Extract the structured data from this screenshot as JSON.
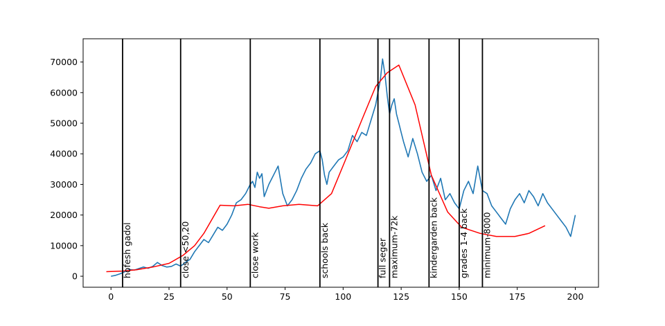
{
  "chart_data": {
    "type": "line",
    "title": "",
    "xlabel": "",
    "ylabel": "",
    "xlim": [
      -12,
      210
    ],
    "ylim": [
      -3600,
      77600
    ],
    "x_ticks": [
      0,
      25,
      50,
      75,
      100,
      125,
      150,
      175,
      200
    ],
    "y_ticks": [
      0,
      10000,
      20000,
      30000,
      40000,
      50000,
      60000,
      70000
    ],
    "x_tick_labels": [
      "0",
      "25",
      "50",
      "75",
      "100",
      "125",
      "150",
      "175",
      "200"
    ],
    "y_tick_labels": [
      "0",
      "10000",
      "20000",
      "30000",
      "40000",
      "50000",
      "60000",
      "70000"
    ],
    "grid": false,
    "legend": "none",
    "series": [
      {
        "color": "#1f77b4",
        "x": [
          0,
          2,
          4,
          6,
          8,
          10,
          12,
          14,
          16,
          18,
          20,
          22,
          24,
          26,
          28,
          30,
          32,
          34,
          36,
          38,
          40,
          42,
          44,
          46,
          48,
          50,
          52,
          54,
          56,
          58,
          60,
          61,
          62,
          63,
          64,
          65,
          66,
          68,
          70,
          72,
          74,
          76,
          78,
          80,
          82,
          84,
          86,
          88,
          90,
          91,
          92,
          93,
          94,
          96,
          98,
          100,
          102,
          104,
          106,
          108,
          110,
          112,
          114,
          115,
          116,
          117,
          118,
          119,
          120,
          121,
          122,
          123,
          124,
          125,
          126,
          128,
          130,
          132,
          134,
          136,
          138,
          140,
          142,
          144,
          146,
          148,
          150,
          152,
          154,
          156,
          158,
          160,
          162,
          164,
          166,
          168,
          170,
          172,
          174,
          176,
          178,
          180,
          182,
          184,
          186,
          188,
          190,
          192,
          194,
          196,
          198,
          200
        ],
        "y": [
          0,
          300,
          800,
          1500,
          2200,
          2000,
          2500,
          3000,
          2600,
          3200,
          4500,
          3500,
          3000,
          3200,
          4000,
          3300,
          4500,
          5500,
          8000,
          10000,
          12000,
          11000,
          13500,
          16000,
          15000,
          17000,
          20000,
          24000,
          25000,
          27000,
          30000,
          31000,
          29000,
          34000,
          32000,
          33500,
          26000,
          30000,
          33000,
          36000,
          27000,
          23000,
          25000,
          28000,
          32000,
          35000,
          37000,
          40000,
          41000,
          38000,
          33000,
          30000,
          34000,
          36000,
          38000,
          39000,
          41000,
          46000,
          44000,
          47000,
          46000,
          51000,
          56000,
          60000,
          64000,
          71000,
          66000,
          59000,
          53000,
          56000,
          58000,
          53000,
          50000,
          47000,
          44000,
          39000,
          45000,
          40000,
          34000,
          31000,
          33000,
          28000,
          32000,
          25000,
          27000,
          24000,
          22000,
          28000,
          31000,
          27000,
          36000,
          28000,
          27000,
          23000,
          21000,
          19000,
          17000,
          22000,
          25000,
          27000,
          24000,
          28000,
          26000,
          23000,
          27000,
          24000,
          22000,
          20000,
          18000,
          16000,
          13000,
          20000
        ]
      },
      {
        "color": "#ff0000",
        "x": [
          -2,
          5,
          11,
          18,
          25,
          31,
          36,
          40,
          47,
          53,
          59,
          64,
          68,
          74,
          81,
          89,
          95,
          101,
          108,
          114,
          119,
          124,
          131,
          138,
          145,
          151,
          159,
          166,
          174,
          180,
          187
        ],
        "y": [
          1500,
          1700,
          2100,
          3000,
          4200,
          6800,
          10000,
          14000,
          23200,
          23000,
          23500,
          22700,
          22200,
          23000,
          23500,
          23000,
          27000,
          38000,
          51000,
          62000,
          66500,
          69000,
          56000,
          33000,
          21000,
          16000,
          14000,
          13000,
          13000,
          14000,
          16500
        ]
      }
    ],
    "events": [
      {
        "x": 5,
        "label": "hofesh gadol"
      },
      {
        "x": 30,
        "label": "close <50,20"
      },
      {
        "x": 60,
        "label": "close work"
      },
      {
        "x": 90,
        "label": "schools back"
      },
      {
        "x": 115,
        "label": "full seger"
      },
      {
        "x": 120,
        "label": "maximum-72k"
      },
      {
        "x": 137,
        "label": "kindergarden back"
      },
      {
        "x": 150,
        "label": "grades 1-4 back"
      },
      {
        "x": 160,
        "label": "minimum-8000"
      }
    ]
  }
}
